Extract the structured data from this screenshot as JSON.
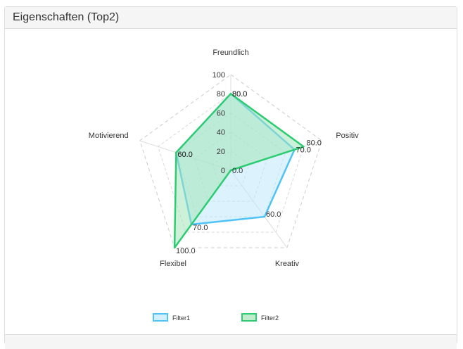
{
  "panel": {
    "title": "Eigenschaften (Top2)"
  },
  "chart_data": {
    "type": "radar",
    "categories": [
      "Freundlich",
      "Positiv",
      "Kreativ",
      "Flexibel",
      "Motivierend"
    ],
    "rlim": [
      0,
      100
    ],
    "ticks": [
      0,
      20,
      40,
      60,
      80,
      100
    ],
    "tick_labels": [
      "0",
      "20",
      "40",
      "60",
      "80",
      "100"
    ],
    "grid": true,
    "legend": "bottom",
    "series": [
      {
        "name": "Filter1",
        "values": [
          80,
          70,
          60,
          70,
          60
        ],
        "value_labels": [
          "80.0",
          "70.0",
          "60.0",
          "70.0",
          "60.0"
        ],
        "stroke": "#4fc3f7",
        "fill": "#bfe9fb"
      },
      {
        "name": "Filter2",
        "values": [
          80,
          80,
          0,
          100,
          60
        ],
        "value_labels": [
          "80.0",
          "80.0",
          "0.0",
          "100.0",
          "60.0"
        ],
        "stroke": "#2ecc71",
        "fill": "#a3e4b8"
      }
    ]
  }
}
